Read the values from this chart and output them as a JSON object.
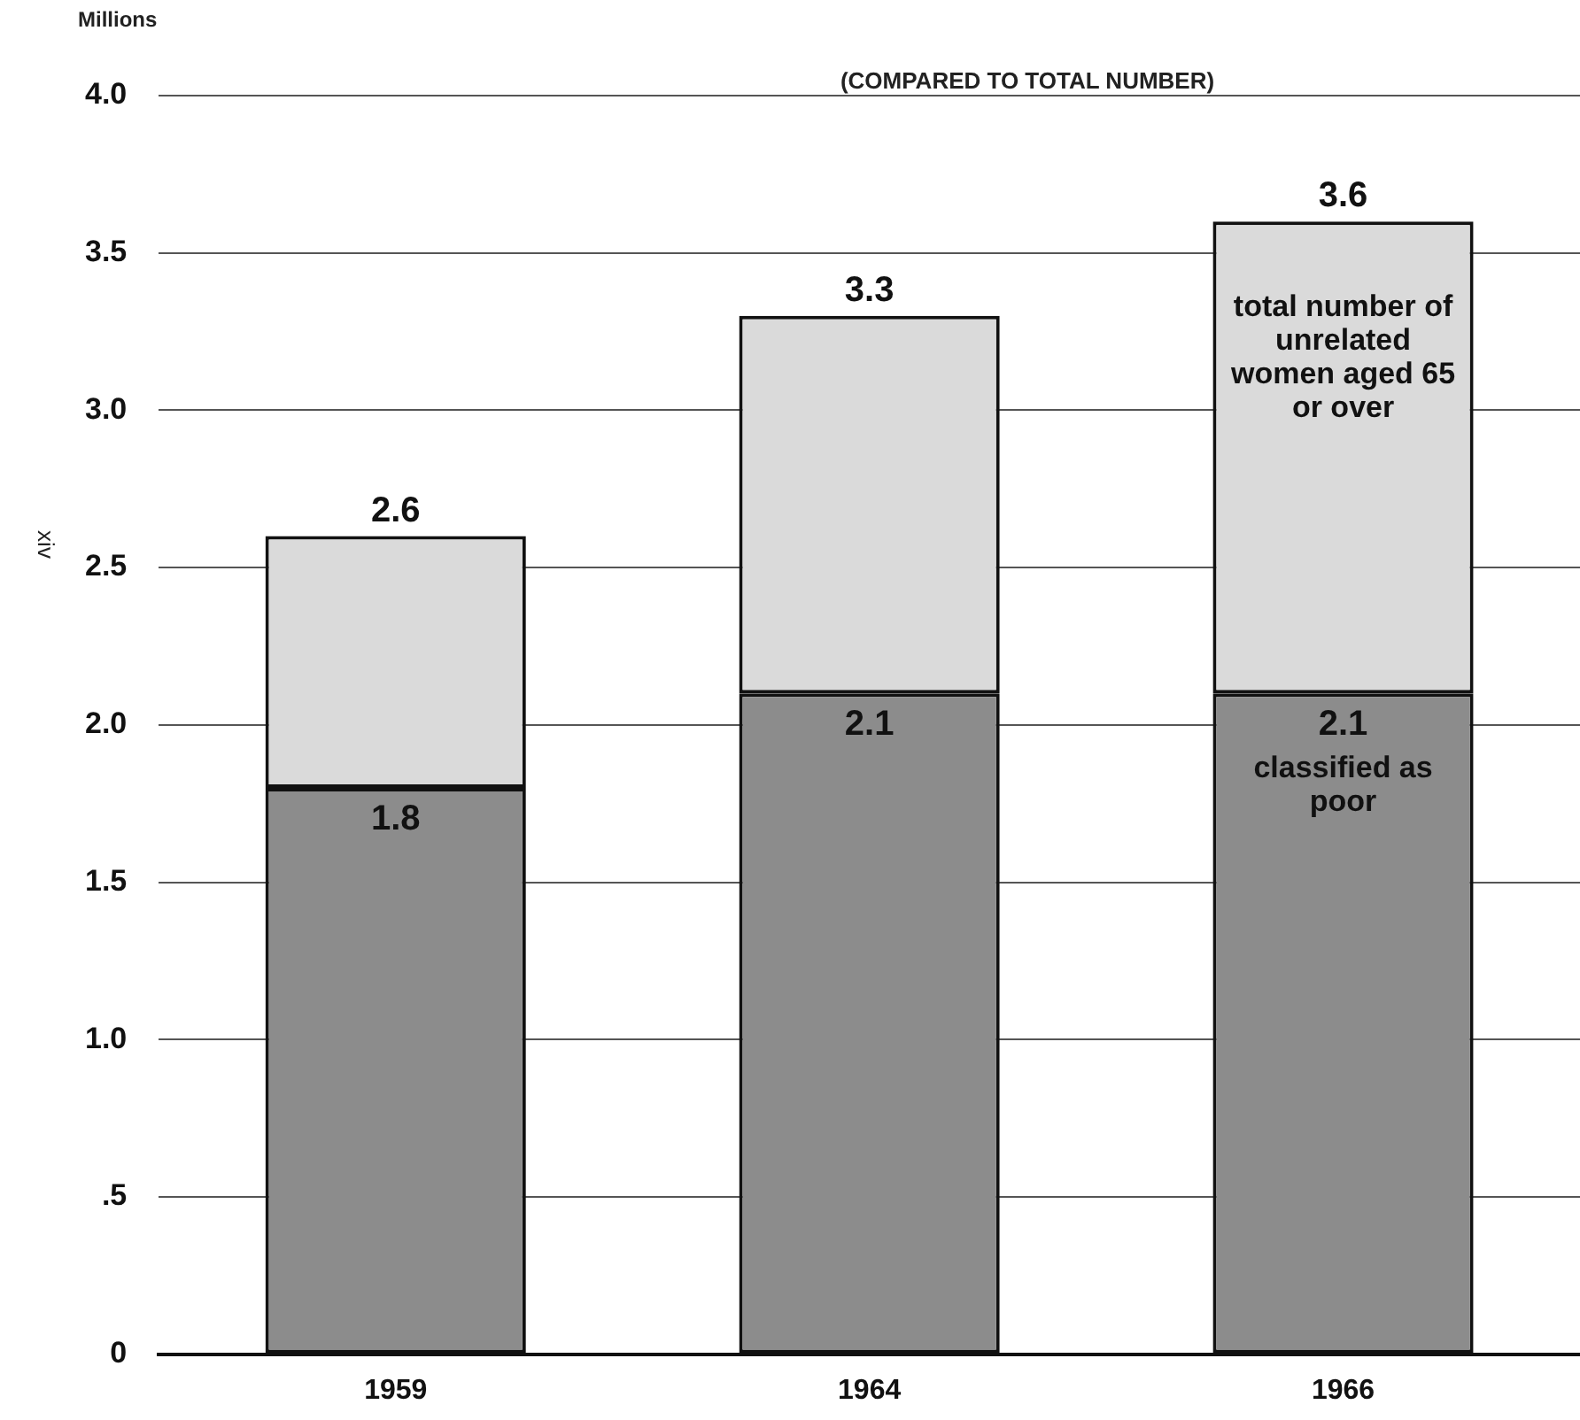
{
  "chart_data": {
    "type": "bar",
    "stacked": true,
    "subtitle": "(COMPARED TO TOTAL NUMBER)",
    "ylabel": "Millions",
    "categories": [
      "1959",
      "1964",
      "1966"
    ],
    "series": [
      {
        "name": "classified as poor",
        "color": "#8c8c8c",
        "values": [
          1.8,
          2.1,
          2.1
        ],
        "value_labels": [
          "1.8",
          "2.1",
          "2.1"
        ]
      },
      {
        "name": "total number of unrelated women aged 65 or over",
        "color": "#dadada",
        "values": [
          0.8,
          1.2,
          1.5
        ]
      }
    ],
    "totals": [
      "2.6",
      "3.3",
      "3.6"
    ],
    "ylim": [
      0,
      4
    ],
    "yticks": [
      0,
      {
        "value": 0.5,
        "label": ".5"
      },
      {
        "value": 1,
        "label": "1.0"
      },
      {
        "value": 1.5,
        "label": "1.5"
      },
      {
        "value": 2,
        "label": "2.0"
      },
      {
        "value": 2.5,
        "label": "2.5"
      },
      {
        "value": 3,
        "label": "3.0"
      },
      {
        "value": 3.5,
        "label": "3.5"
      },
      {
        "value": 4,
        "label": "4.0"
      }
    ],
    "grid": "y",
    "annotations": [
      "xiv"
    ]
  }
}
